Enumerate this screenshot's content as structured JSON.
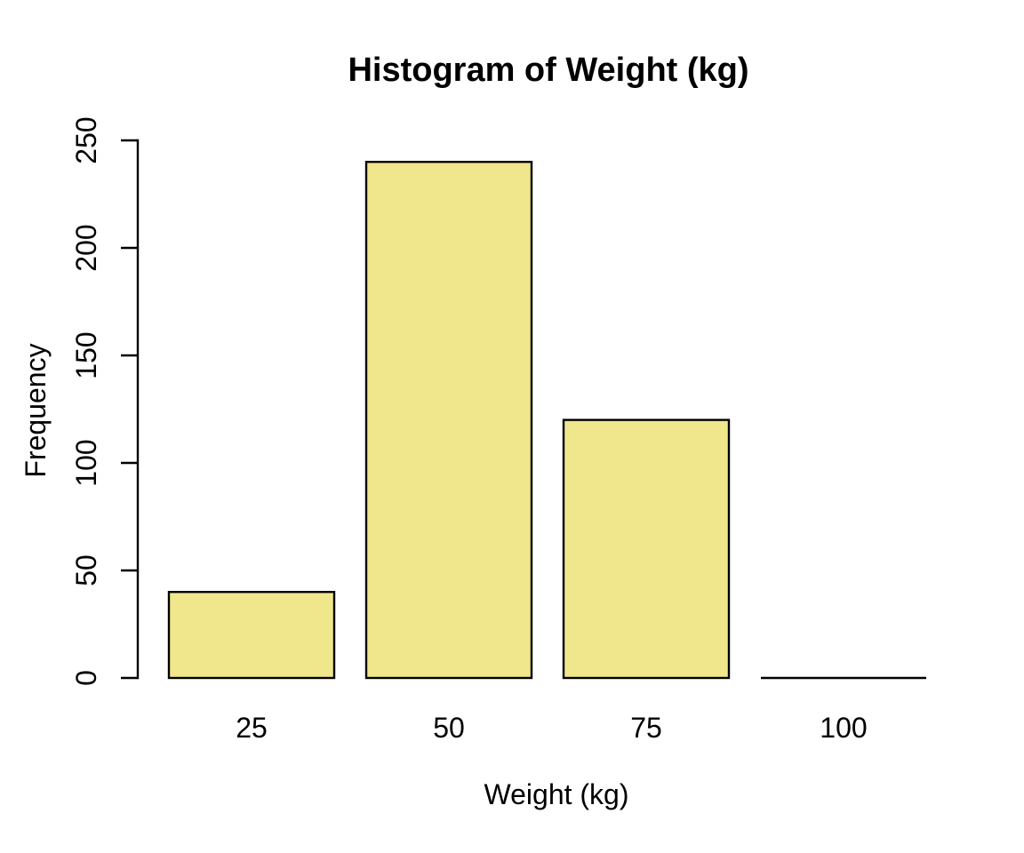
{
  "figure": {
    "background": "#ffffff"
  },
  "chart_data": {
    "type": "bar",
    "title": "Histogram of Weight (kg)",
    "xlabel": "Weight (kg)",
    "ylabel": "Frequency",
    "categories": [
      "25",
      "50",
      "75",
      "100"
    ],
    "values": [
      40,
      240,
      120,
      0
    ],
    "ylim": [
      0,
      250
    ],
    "yticks": [
      0,
      50,
      100,
      150,
      200,
      250
    ],
    "grid": false,
    "legend": "none",
    "bar_fill_color": "#F0E68C",
    "bar_border_color": "#000000",
    "axis_color": "#000000",
    "text_color": "#000000"
  }
}
